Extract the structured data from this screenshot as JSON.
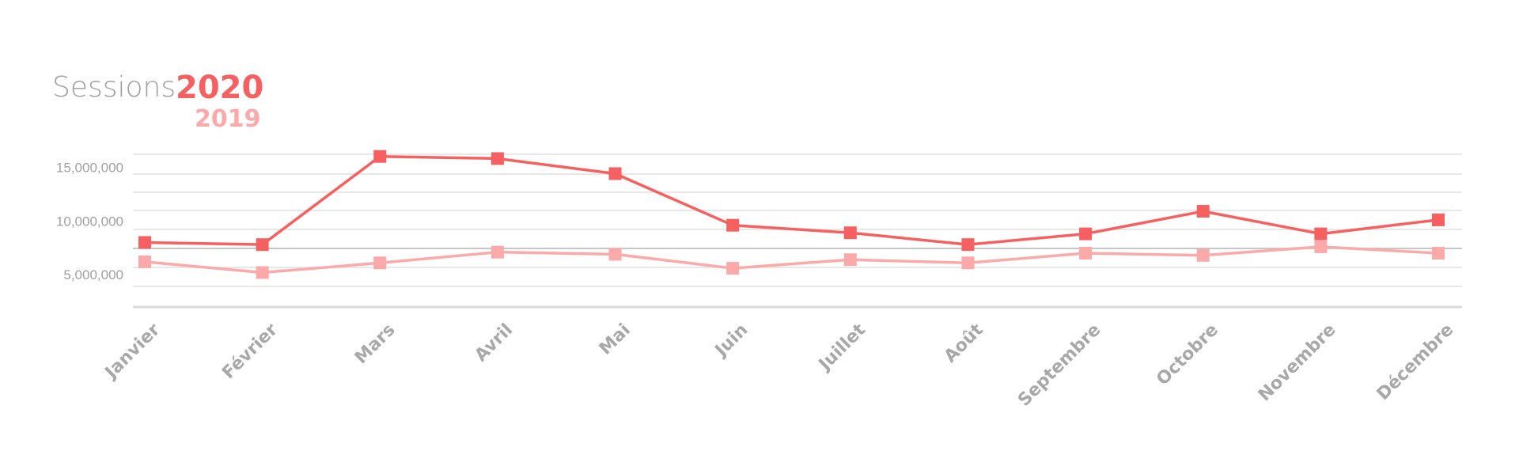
{
  "chart_data": {
    "type": "line",
    "title": "Sessions",
    "legend": [
      "2020",
      "2019"
    ],
    "categories": [
      "Janvier",
      "Février",
      "Mars",
      "Avril",
      "Mai",
      "Juin",
      "Juillet",
      "Août",
      "Septembre",
      "Octobre",
      "Novembre",
      "Décembre"
    ],
    "series": [
      {
        "name": "2020",
        "color": "#f66060",
        "values": [
          8000000,
          7800000,
          16000000,
          15800000,
          14400000,
          9600000,
          8900000,
          7800000,
          8800000,
          10900000,
          8800000,
          10100000
        ]
      },
      {
        "name": "2019",
        "color": "#fca9a9",
        "values": [
          6200000,
          5200000,
          6100000,
          7100000,
          6900000,
          5600000,
          6400000,
          6100000,
          7000000,
          6800000,
          7600000,
          7000000
        ]
      }
    ],
    "yticks": [
      {
        "value": 5000000,
        "label": "5,000,000"
      },
      {
        "value": 10000000,
        "label": "10,000,000"
      },
      {
        "value": 15000000,
        "label": "15,000,000"
      }
    ],
    "ylim": [
      2000000,
      16200000
    ],
    "grid": true,
    "legend_position": "top-left",
    "xlabel": "",
    "ylabel": ""
  }
}
